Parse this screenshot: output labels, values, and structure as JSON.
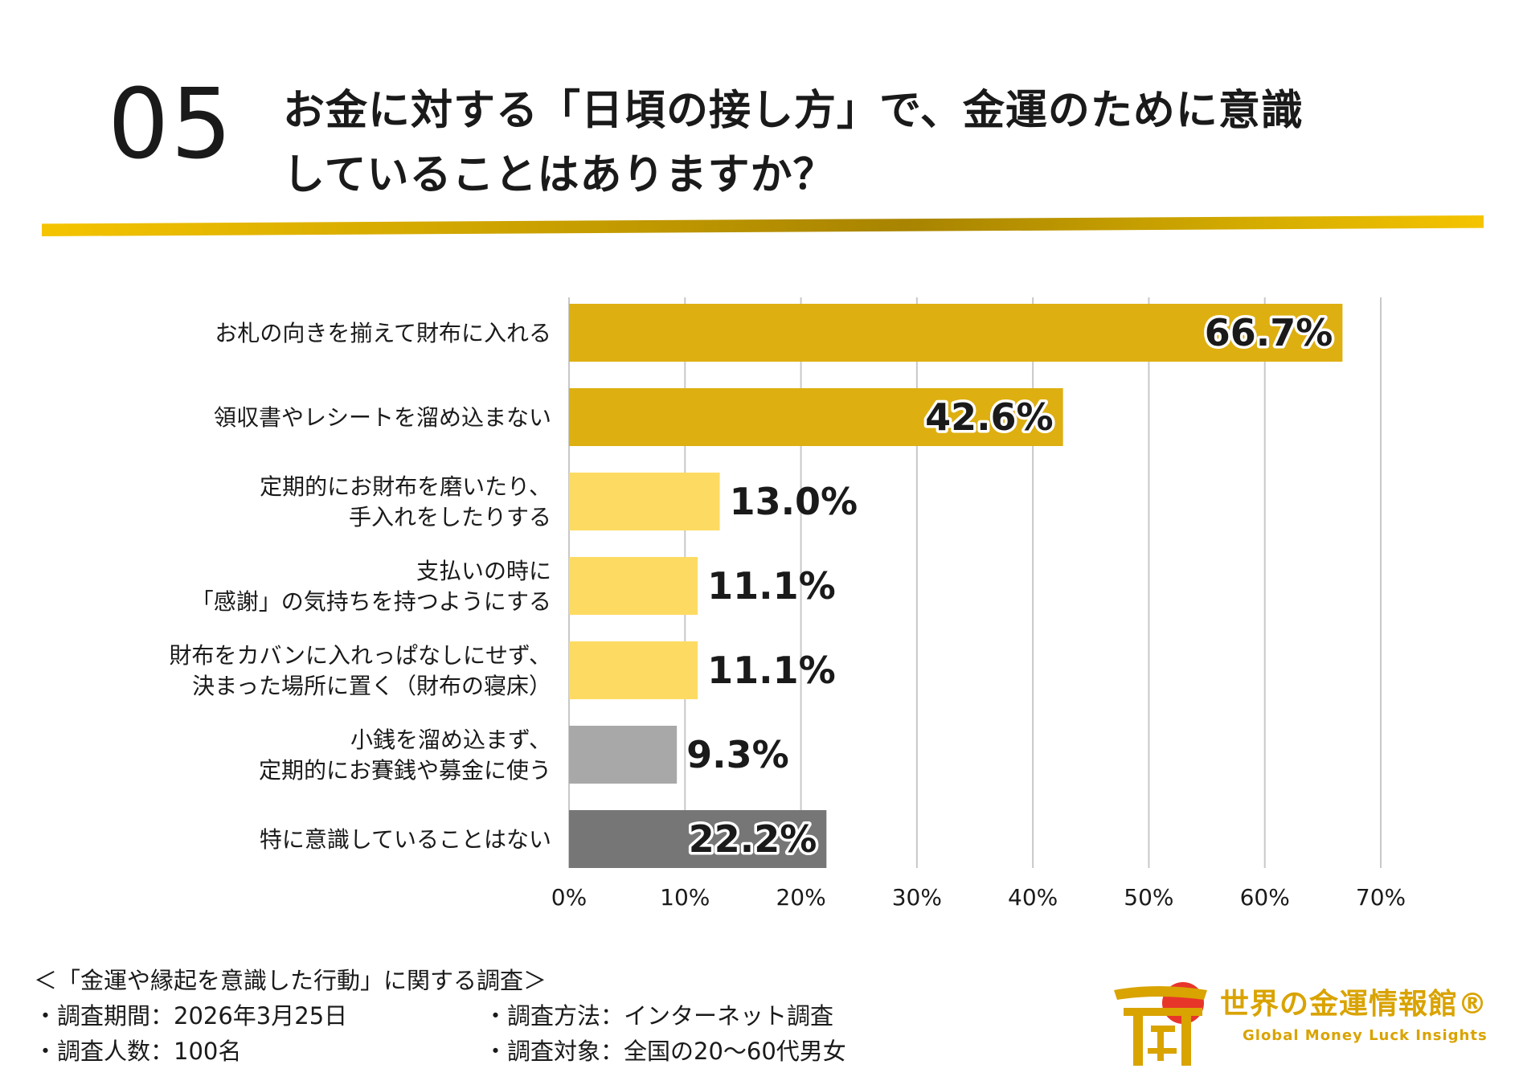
{
  "question": {
    "number": "05",
    "title_line1": "お金に対する「日頃の接し方」で、金運のために意識",
    "title_line2": "していることはありますか？"
  },
  "chart_data": {
    "type": "bar",
    "orientation": "horizontal",
    "categories": [
      [
        "お札の向きを揃えて財布に入れる"
      ],
      [
        "領収書やレシートを溜め込まない"
      ],
      [
        "定期的にお財布を磨いたり、",
        "手入れをしたりする"
      ],
      [
        "支払いの時に",
        "「感謝」の気持ちを持つようにする"
      ],
      [
        "財布をカバンに入れっぱなしにせず、",
        "決まった場所に置く（財布の寝床）"
      ],
      [
        "小銭を溜め込まず、",
        "定期的にお賽銭や募金に使う"
      ],
      [
        "特に意識していることはない"
      ]
    ],
    "values": [
      66.7,
      42.6,
      13.0,
      11.1,
      11.1,
      9.3,
      22.2
    ],
    "value_labels": [
      "66.7%",
      "42.6%",
      "13.0%",
      "11.1%",
      "11.1%",
      "9.3%",
      "22.2%"
    ],
    "bar_colors": [
      "#deaf10",
      "#deaf10",
      "#fddb63",
      "#fddb63",
      "#fddb63",
      "#a8a8a8",
      "#767676"
    ],
    "label_inside": [
      true,
      true,
      false,
      false,
      false,
      false,
      true
    ],
    "xlim": [
      0,
      70
    ],
    "xticks": [
      0,
      10,
      20,
      30,
      40,
      50,
      60,
      70
    ],
    "xtick_labels": [
      "0%",
      "10%",
      "20%",
      "30%",
      "40%",
      "50%",
      "60%",
      "70%"
    ],
    "grid": true
  },
  "survey": {
    "heading": "＜「金運や縁起を意識した行動」に関する調査＞",
    "period": "・調査期間：2026年3月25日",
    "method": "・調査方法：インターネット調査",
    "count": "・調査人数：100名",
    "target": "・調査対象：全国の20〜60代男女"
  },
  "logo": {
    "name": "世界の金運情報館®",
    "tagline": "Global Money Luck Insights",
    "colors": {
      "gold": "#d9a300",
      "sun": "#e8352a"
    }
  }
}
